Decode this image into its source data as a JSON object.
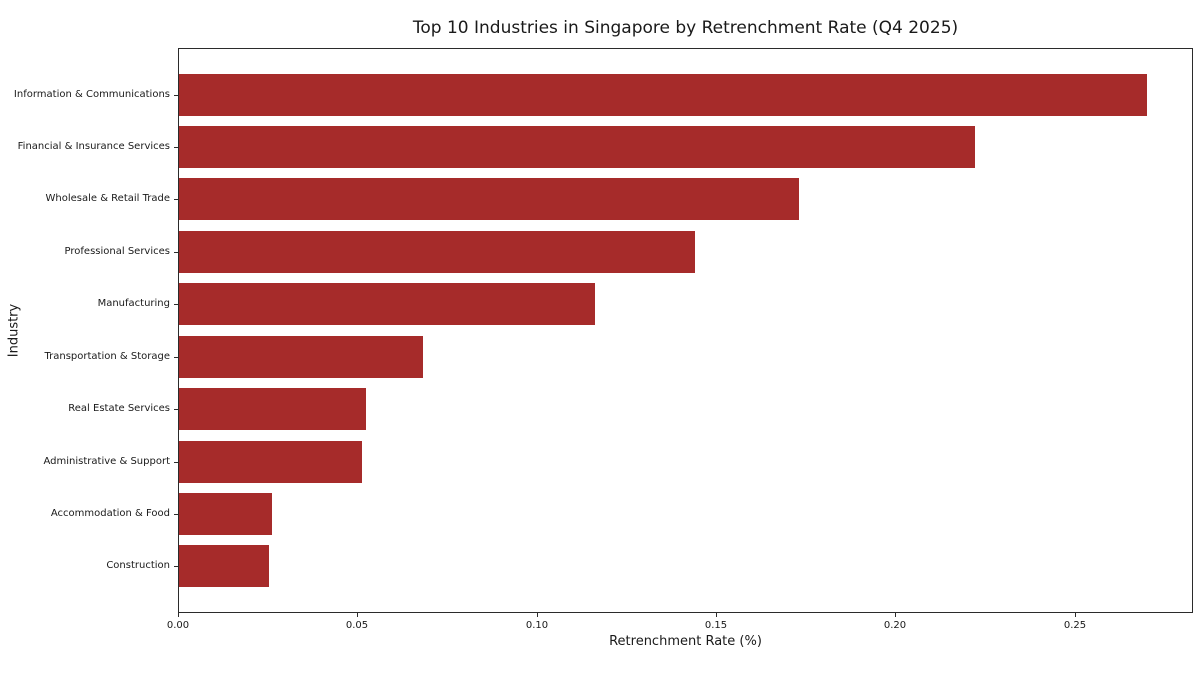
{
  "chart_data": {
    "type": "bar",
    "orientation": "horizontal",
    "title": "Top 10 Industries in Singapore by Retrenchment Rate (Q4 2025)",
    "xlabel": "Retrenchment Rate (%)",
    "ylabel": "Industry",
    "categories": [
      "Information & Communications",
      "Financial & Insurance Services",
      "Wholesale & Retail Trade",
      "Professional Services",
      "Manufacturing",
      "Transportation & Storage",
      "Real Estate Services",
      "Administrative & Support",
      "Accommodation & Food",
      "Construction"
    ],
    "values": [
      0.27,
      0.222,
      0.173,
      0.144,
      0.116,
      0.068,
      0.052,
      0.051,
      0.026,
      0.025
    ],
    "xlim": [
      0,
      0.283
    ],
    "xticks": [
      0.0,
      0.05,
      0.1,
      0.15,
      0.2,
      0.25
    ],
    "xtick_labels": [
      "0.00",
      "0.05",
      "0.10",
      "0.15",
      "0.20",
      "0.25"
    ],
    "bar_color": "#a62b2a",
    "grid": false,
    "legend": null
  }
}
